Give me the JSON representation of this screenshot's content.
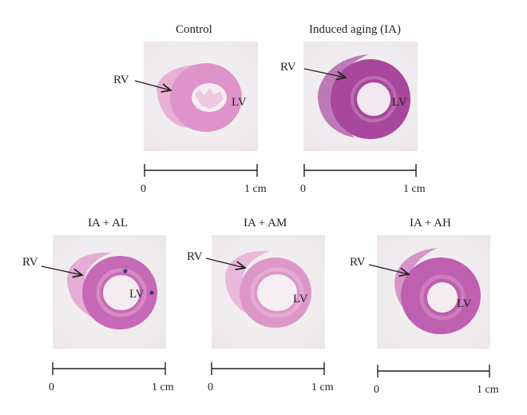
{
  "panels": [
    {
      "title": "Control",
      "rv_label": "RV",
      "lv_label": "LV",
      "scale_start": "0",
      "scale_end": "1 cm"
    },
    {
      "title": "Induced aging (IA)",
      "rv_label": "RV",
      "lv_label": "LV",
      "scale_start": "0",
      "scale_end": "1 cm"
    },
    {
      "title": "IA + AL",
      "rv_label": "RV",
      "lv_label": "LV",
      "scale_start": "0",
      "scale_end": "1 cm"
    },
    {
      "title": "IA + AM",
      "rv_label": "RV",
      "lv_label": "LV",
      "scale_start": "0",
      "scale_end": "1 cm"
    },
    {
      "title": "IA + AH",
      "rv_label": "RV",
      "lv_label": "LV",
      "scale_start": "0",
      "scale_end": "1 cm"
    }
  ],
  "colors": {
    "tissue_light": "#e7a9d4",
    "tissue_medium": "#d98fc6",
    "tissue_dark": "#a8479c",
    "background_tile": "#f4f0f2",
    "ink": "#231f20"
  }
}
